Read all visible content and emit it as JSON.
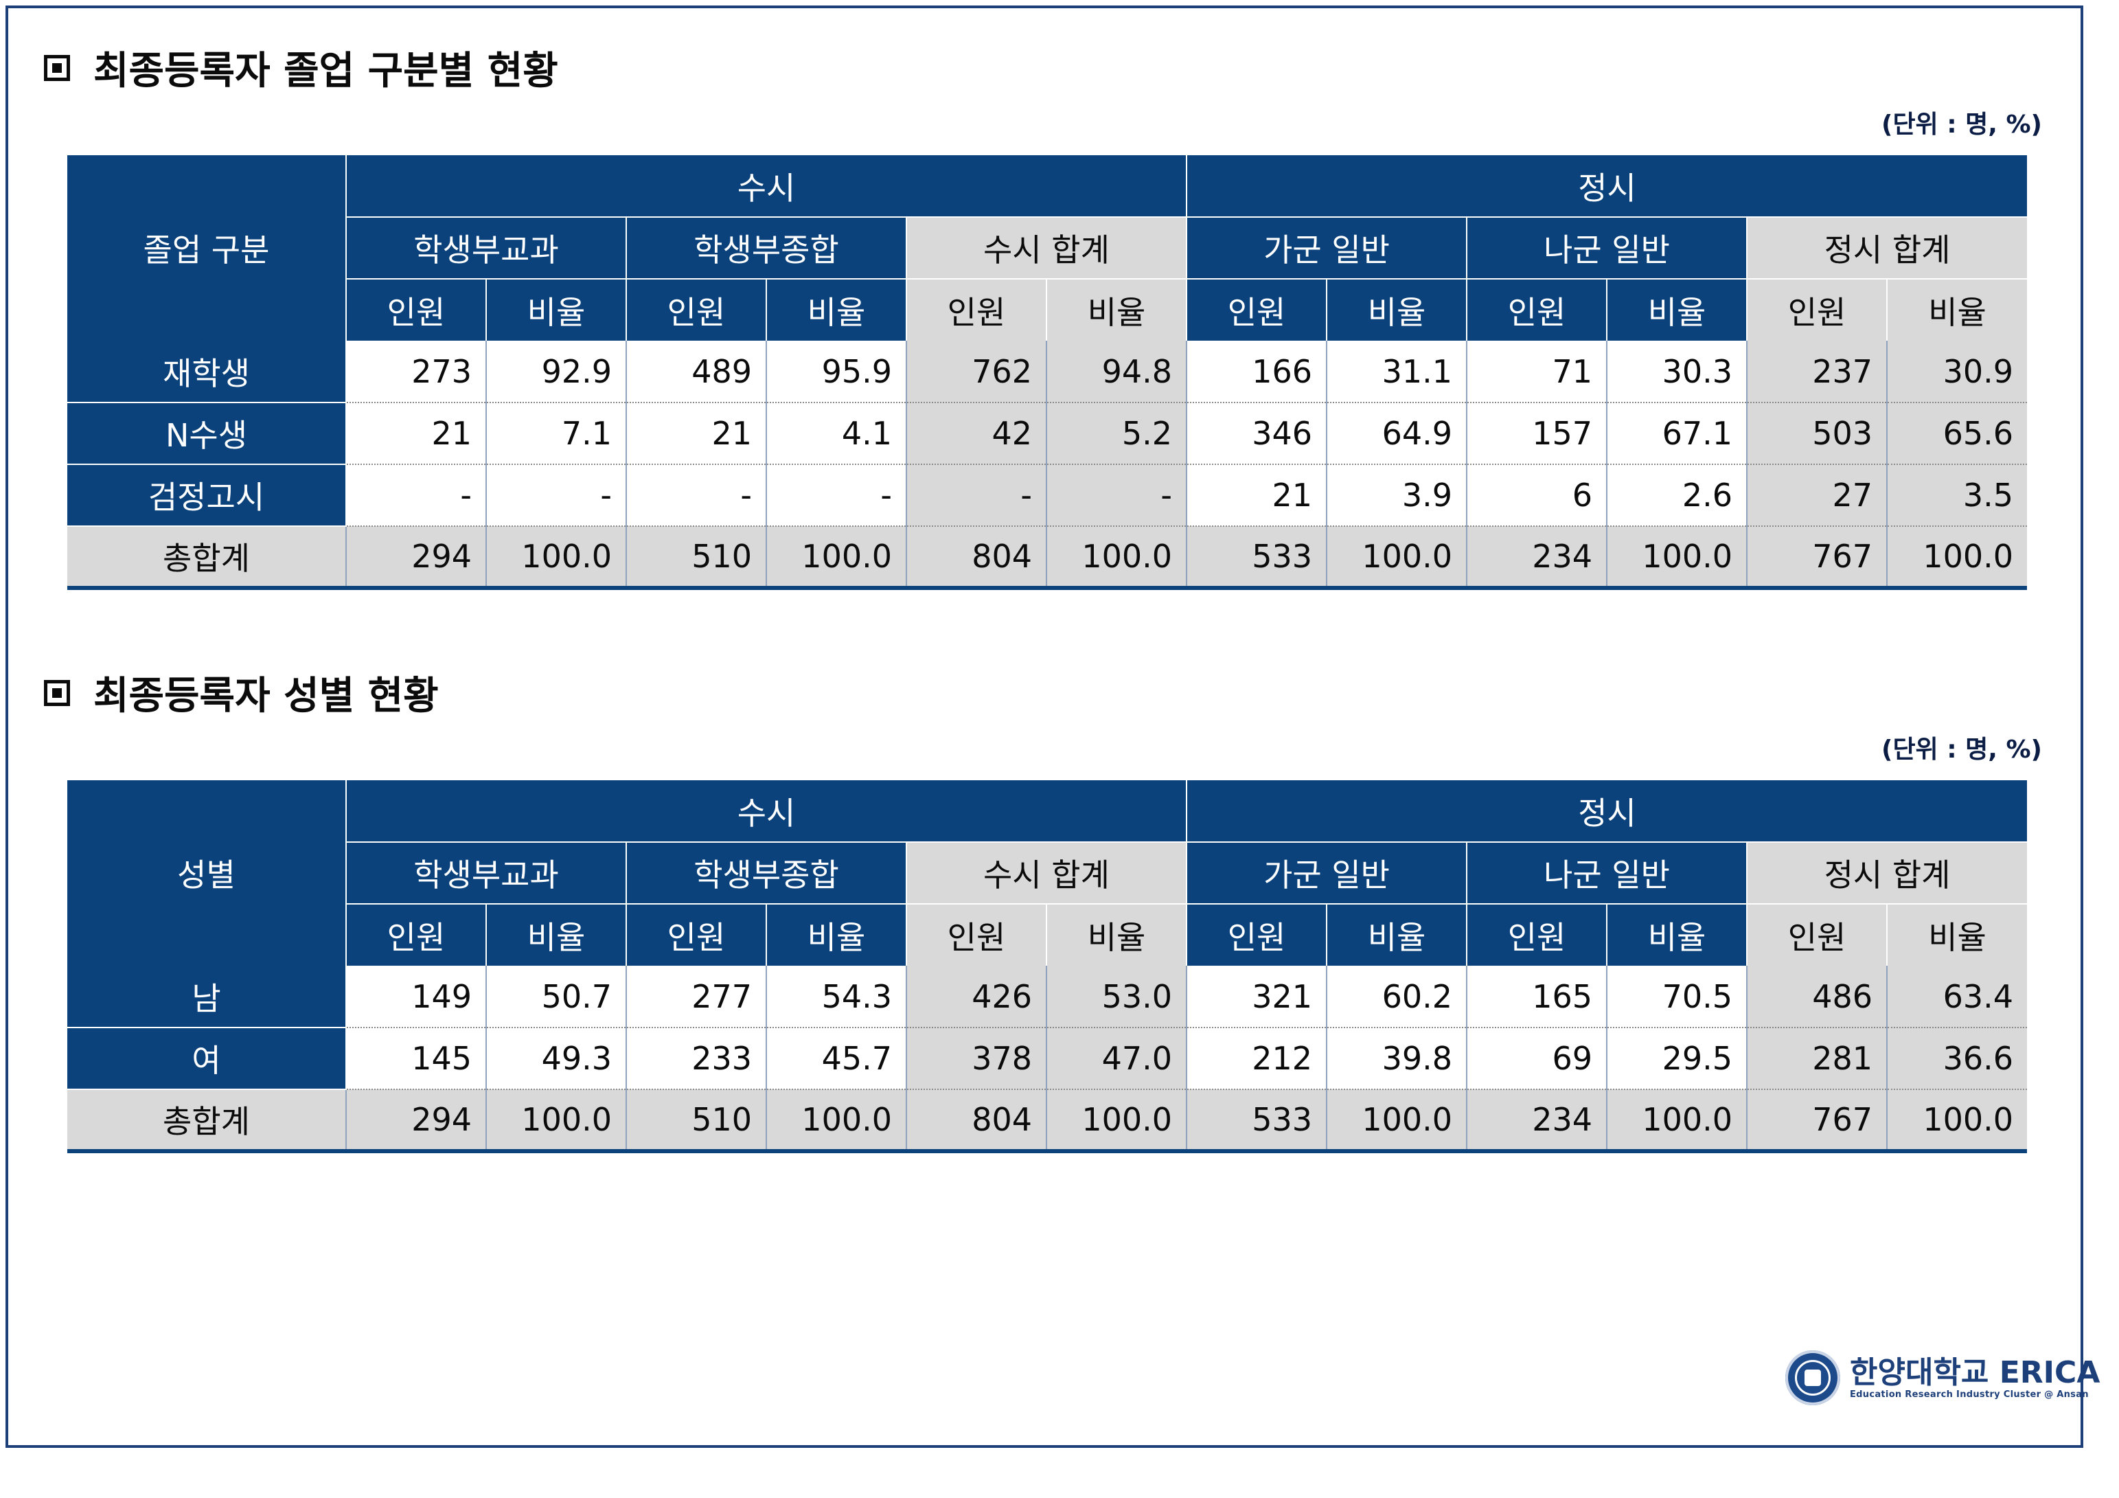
{
  "section1": {
    "title": "최종등록자 졸업 구분별 현황",
    "unit": "(단위 : 명, %)",
    "corner_label": "졸업 구분",
    "groups": [
      "수시",
      "정시"
    ],
    "subgroups": [
      "학생부교과",
      "학생부종합",
      "수시 합계",
      "가군 일반",
      "나군 일반",
      "정시 합계"
    ],
    "metrics": [
      "인원",
      "비율",
      "인원",
      "비율",
      "인원",
      "비율",
      "인원",
      "비율",
      "인원",
      "비율",
      "인원",
      "비율"
    ],
    "rows": [
      {
        "label": "재학생",
        "values": [
          "273",
          "92.9",
          "489",
          "95.9",
          "762",
          "94.8",
          "166",
          "31.1",
          "71",
          "30.3",
          "237",
          "30.9"
        ]
      },
      {
        "label": "N수생",
        "values": [
          "21",
          "7.1",
          "21",
          "4.1",
          "42",
          "5.2",
          "346",
          "64.9",
          "157",
          "67.1",
          "503",
          "65.6"
        ]
      },
      {
        "label": "검정고시",
        "values": [
          "-",
          "-",
          "-",
          "-",
          "-",
          "-",
          "21",
          "3.9",
          "6",
          "2.6",
          "27",
          "3.5"
        ]
      }
    ],
    "total": {
      "label": "총합계",
      "values": [
        "294",
        "100.0",
        "510",
        "100.0",
        "804",
        "100.0",
        "533",
        "100.0",
        "234",
        "100.0",
        "767",
        "100.0"
      ]
    }
  },
  "section2": {
    "title": "최종등록자 성별 현황",
    "unit": "(단위 : 명, %)",
    "corner_label": "성별",
    "groups": [
      "수시",
      "정시"
    ],
    "subgroups": [
      "학생부교과",
      "학생부종합",
      "수시 합계",
      "가군 일반",
      "나군 일반",
      "정시 합계"
    ],
    "metrics": [
      "인원",
      "비율",
      "인원",
      "비율",
      "인원",
      "비율",
      "인원",
      "비율",
      "인원",
      "비율",
      "인원",
      "비율"
    ],
    "rows": [
      {
        "label": "남",
        "values": [
          "149",
          "50.7",
          "277",
          "54.3",
          "426",
          "53.0",
          "321",
          "60.2",
          "165",
          "70.5",
          "486",
          "63.4"
        ]
      },
      {
        "label": "여",
        "values": [
          "145",
          "49.3",
          "233",
          "45.7",
          "378",
          "47.0",
          "212",
          "39.8",
          "69",
          "29.5",
          "281",
          "36.6"
        ]
      }
    ],
    "total": {
      "label": "총합계",
      "values": [
        "294",
        "100.0",
        "510",
        "100.0",
        "804",
        "100.0",
        "533",
        "100.0",
        "234",
        "100.0",
        "767",
        "100.0"
      ]
    }
  },
  "logo": {
    "name": "한양대학교 ERICA",
    "tagline": "Education Research Industry Cluster @ Ansan"
  }
}
